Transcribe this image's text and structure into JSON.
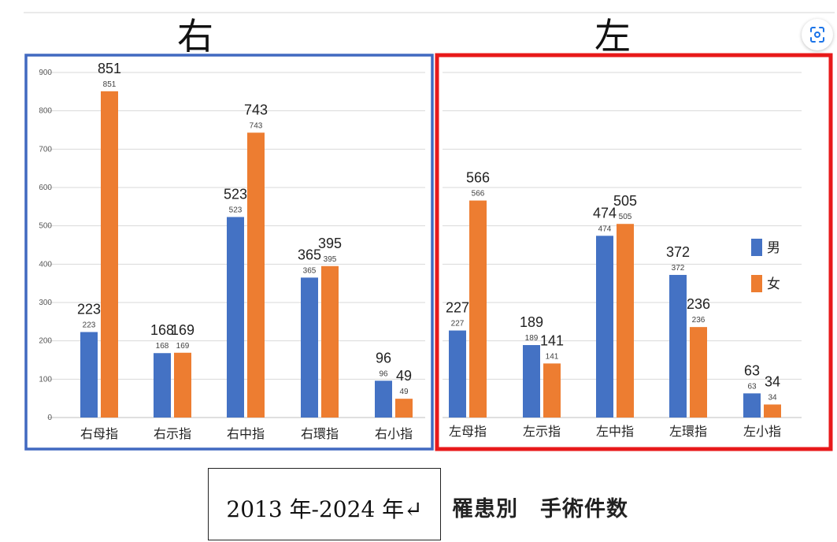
{
  "colors": {
    "male": "#4472C4",
    "female": "#ED7D31",
    "right_frame": "#4169C0",
    "left_frame": "#E8191A"
  },
  "chart_data": [
    {
      "type": "bar",
      "title": "右",
      "categories": [
        "右母指",
        "右示指",
        "右中指",
        "右環指",
        "右小指"
      ],
      "series": [
        {
          "name": "男",
          "values": [
            223,
            168,
            523,
            365,
            96
          ]
        },
        {
          "name": "女",
          "values": [
            851,
            169,
            743,
            395,
            49
          ]
        }
      ],
      "ylim": [
        0,
        900
      ],
      "yticks": [
        0,
        100,
        200,
        300,
        400,
        500,
        600,
        700,
        800,
        900
      ],
      "grid": true,
      "legend": "none"
    },
    {
      "type": "bar",
      "title": "左",
      "categories": [
        "左母指",
        "左示指",
        "左中指",
        "左環指",
        "左小指"
      ],
      "series": [
        {
          "name": "男",
          "values": [
            227,
            189,
            474,
            372,
            63
          ]
        },
        {
          "name": "女",
          "values": [
            566,
            141,
            505,
            236,
            34
          ]
        }
      ],
      "ylim": [
        0,
        900
      ],
      "grid": true,
      "legend": "right"
    }
  ],
  "footer": {
    "period": "2013 年-2024 年↵",
    "title": "罹患別　手術件数"
  },
  "toolbar": {
    "scan_icon": "lens-scan-icon"
  }
}
